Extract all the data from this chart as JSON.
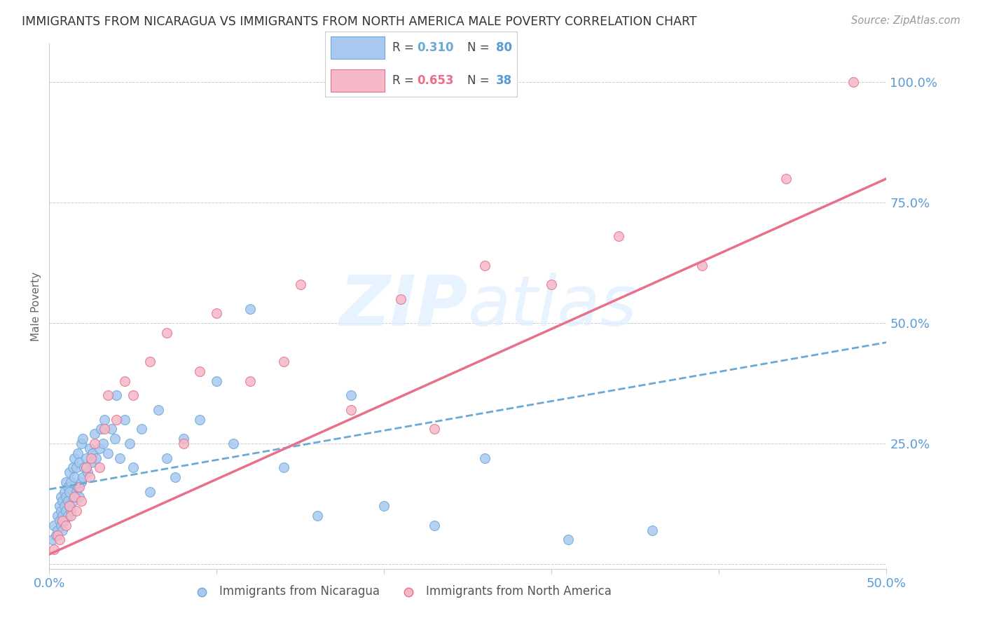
{
  "title": "IMMIGRANTS FROM NICARAGUA VS IMMIGRANTS FROM NORTH AMERICA MALE POVERTY CORRELATION CHART",
  "source": "Source: ZipAtlas.com",
  "ylabel": "Male Poverty",
  "xlim": [
    0.0,
    0.5
  ],
  "ylim": [
    -0.01,
    1.08
  ],
  "yticks": [
    0.0,
    0.25,
    0.5,
    0.75,
    1.0
  ],
  "ytick_labels": [
    "",
    "25.0%",
    "50.0%",
    "75.0%",
    "100.0%"
  ],
  "xticks": [
    0.0,
    0.1,
    0.2,
    0.3,
    0.4,
    0.5
  ],
  "xtick_labels": [
    "0.0%",
    "",
    "",
    "",
    "",
    "50.0%"
  ],
  "color_nicaragua": "#a8c8f0",
  "color_nicaragua_edge": "#6aaad4",
  "color_north_america": "#f5b8c8",
  "color_north_america_edge": "#e8708a",
  "color_nicaragua_line": "#6aaad4",
  "color_north_america_line": "#e8708a",
  "color_axis_labels": "#5b9bd5",
  "background_color": "#ffffff",
  "grid_color": "#cccccc",
  "watermark_color": "#ddeeff",
  "nicaragua_x": [
    0.002,
    0.003,
    0.004,
    0.005,
    0.005,
    0.006,
    0.006,
    0.007,
    0.007,
    0.007,
    0.008,
    0.008,
    0.008,
    0.009,
    0.009,
    0.009,
    0.01,
    0.01,
    0.01,
    0.011,
    0.011,
    0.011,
    0.012,
    0.012,
    0.012,
    0.013,
    0.013,
    0.014,
    0.014,
    0.015,
    0.015,
    0.015,
    0.016,
    0.016,
    0.017,
    0.017,
    0.018,
    0.018,
    0.019,
    0.019,
    0.02,
    0.02,
    0.021,
    0.022,
    0.023,
    0.024,
    0.025,
    0.026,
    0.027,
    0.028,
    0.03,
    0.031,
    0.032,
    0.033,
    0.035,
    0.037,
    0.039,
    0.04,
    0.042,
    0.045,
    0.048,
    0.05,
    0.055,
    0.06,
    0.065,
    0.07,
    0.075,
    0.08,
    0.09,
    0.1,
    0.11,
    0.12,
    0.14,
    0.16,
    0.18,
    0.2,
    0.23,
    0.26,
    0.31,
    0.36
  ],
  "nicaragua_y": [
    0.05,
    0.08,
    0.06,
    0.1,
    0.07,
    0.09,
    0.12,
    0.08,
    0.11,
    0.14,
    0.1,
    0.13,
    0.07,
    0.12,
    0.09,
    0.15,
    0.11,
    0.14,
    0.17,
    0.1,
    0.13,
    0.16,
    0.12,
    0.15,
    0.19,
    0.11,
    0.17,
    0.13,
    0.2,
    0.14,
    0.18,
    0.22,
    0.15,
    0.2,
    0.16,
    0.23,
    0.14,
    0.21,
    0.17,
    0.25,
    0.18,
    0.26,
    0.2,
    0.22,
    0.19,
    0.24,
    0.21,
    0.23,
    0.27,
    0.22,
    0.24,
    0.28,
    0.25,
    0.3,
    0.23,
    0.28,
    0.26,
    0.35,
    0.22,
    0.3,
    0.25,
    0.2,
    0.28,
    0.15,
    0.32,
    0.22,
    0.18,
    0.26,
    0.3,
    0.38,
    0.25,
    0.53,
    0.2,
    0.1,
    0.35,
    0.12,
    0.08,
    0.22,
    0.05,
    0.07
  ],
  "north_america_x": [
    0.003,
    0.005,
    0.006,
    0.008,
    0.01,
    0.012,
    0.013,
    0.015,
    0.016,
    0.018,
    0.019,
    0.022,
    0.024,
    0.025,
    0.027,
    0.03,
    0.033,
    0.035,
    0.04,
    0.045,
    0.05,
    0.06,
    0.07,
    0.08,
    0.09,
    0.1,
    0.12,
    0.14,
    0.15,
    0.18,
    0.21,
    0.23,
    0.26,
    0.3,
    0.34,
    0.39,
    0.44,
    0.48
  ],
  "north_america_y": [
    0.03,
    0.06,
    0.05,
    0.09,
    0.08,
    0.12,
    0.1,
    0.14,
    0.11,
    0.16,
    0.13,
    0.2,
    0.18,
    0.22,
    0.25,
    0.2,
    0.28,
    0.35,
    0.3,
    0.38,
    0.35,
    0.42,
    0.48,
    0.25,
    0.4,
    0.52,
    0.38,
    0.42,
    0.58,
    0.32,
    0.55,
    0.28,
    0.62,
    0.58,
    0.68,
    0.62,
    0.8,
    1.0
  ],
  "ni_line_x0": 0.0,
  "ni_line_y0": 0.155,
  "ni_line_x1": 0.5,
  "ni_line_y1": 0.46,
  "na_line_x0": 0.0,
  "na_line_y0": 0.02,
  "na_line_x1": 0.5,
  "na_line_y1": 0.8
}
